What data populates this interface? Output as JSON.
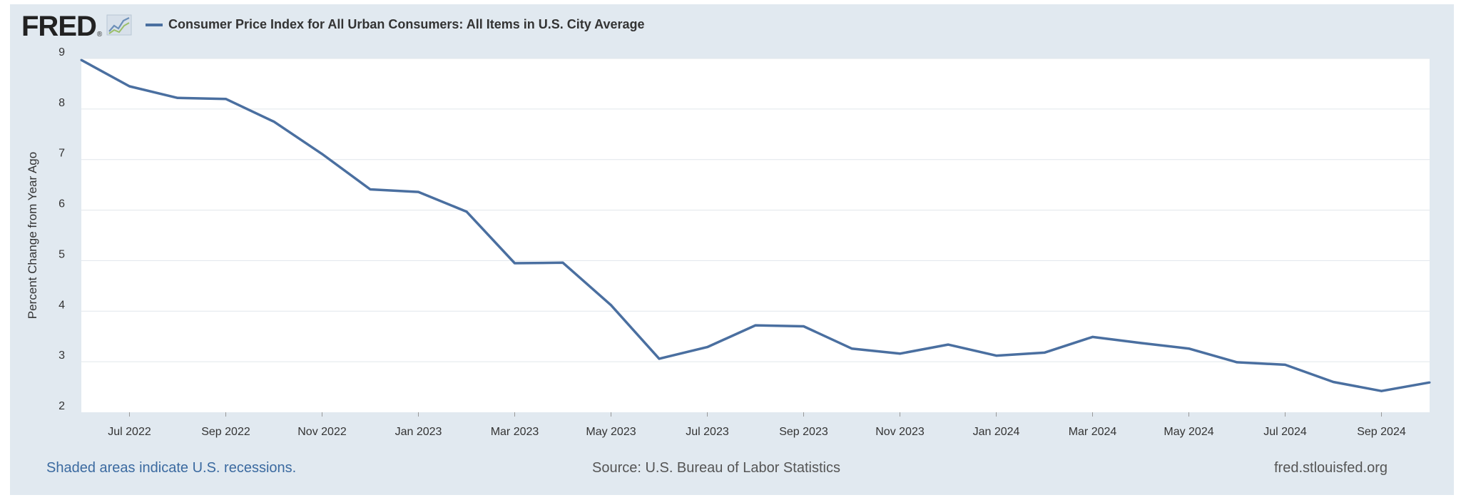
{
  "header": {
    "logo_text": "FRED",
    "logo_reg": "®",
    "legend_label": "Consumer Price Index for All Urban Consumers: All Items in U.S. City Average",
    "series_color": "#4a6fa0"
  },
  "footer": {
    "recessions_note": "Shaded areas indicate U.S. recessions.",
    "source": "Source: U.S. Bureau of Labor Statistics",
    "site": "fred.stlouisfed.org"
  },
  "chart_data": {
    "type": "line",
    "title": "Consumer Price Index for All Urban Consumers: All Items in U.S. City Average",
    "xlabel": "",
    "ylabel": "Percent Change from Year Ago",
    "ylim": [
      2,
      9
    ],
    "yticks": [
      "2",
      "3",
      "4",
      "5",
      "6",
      "7",
      "8",
      "9"
    ],
    "xticks": [
      "Jul 2022",
      "Sep 2022",
      "Nov 2022",
      "Jan 2023",
      "Mar 2023",
      "May 2023",
      "Jul 2023",
      "Sep 2023",
      "Nov 2023",
      "Jan 2024",
      "Mar 2024",
      "May 2024",
      "Jul 2024",
      "Sep 2024"
    ],
    "xtick_month_index": [
      1,
      3,
      5,
      7,
      9,
      11,
      13,
      15,
      17,
      19,
      21,
      23,
      25,
      27
    ],
    "grid": true,
    "legend": "top-left",
    "series": [
      {
        "name": "Consumer Price Index for All Urban Consumers: All Items in U.S. City Average",
        "x": [
          "Jun 2022",
          "Jul 2022",
          "Aug 2022",
          "Sep 2022",
          "Oct 2022",
          "Nov 2022",
          "Dec 2022",
          "Jan 2023",
          "Feb 2023",
          "Mar 2023",
          "Apr 2023",
          "May 2023",
          "Jun 2023",
          "Jul 2023",
          "Aug 2023",
          "Sep 2023",
          "Oct 2023",
          "Nov 2023",
          "Dec 2023",
          "Jan 2024",
          "Feb 2024",
          "Mar 2024",
          "Apr 2024",
          "May 2024",
          "Jun 2024",
          "Jul 2024",
          "Aug 2024",
          "Sep 2024",
          "Oct 2024"
        ],
        "values": [
          8.97,
          8.45,
          8.22,
          8.2,
          7.75,
          7.11,
          6.41,
          6.36,
          5.97,
          4.95,
          4.96,
          4.12,
          3.06,
          3.29,
          3.72,
          3.7,
          3.26,
          3.16,
          3.34,
          3.12,
          3.18,
          3.49,
          3.37,
          3.26,
          2.99,
          2.94,
          2.6,
          2.42,
          2.59
        ]
      }
    ]
  }
}
